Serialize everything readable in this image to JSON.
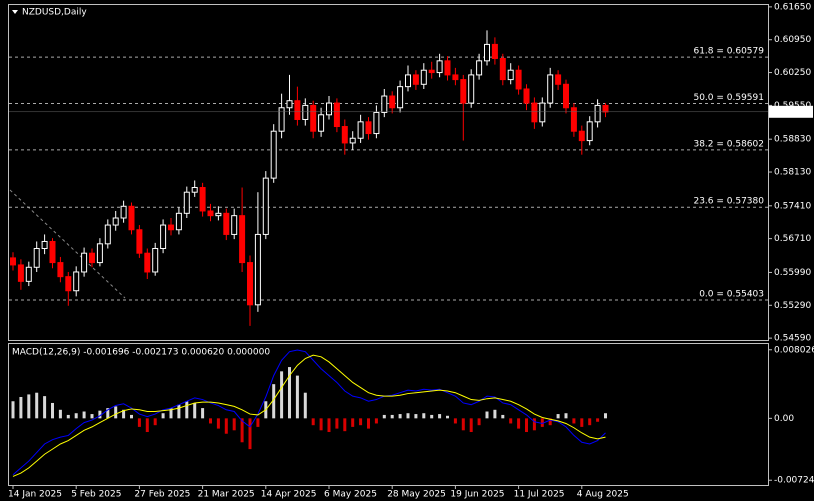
{
  "chart_data": {
    "type": "candlestick",
    "title": "NZDUSD,Daily",
    "up_color": "#ffffff",
    "down_color": "#ff0000",
    "ylim": [
      0.5455,
      0.6169
    ],
    "yticks": [
      {
        "value": 0.6165,
        "label": "0.61650"
      },
      {
        "value": 0.6095,
        "label": "0.60950"
      },
      {
        "value": 0.6025,
        "label": "0.60250"
      },
      {
        "value": 0.5955,
        "label": "0.59550"
      },
      {
        "value": 0.5883,
        "label": "0.58830"
      },
      {
        "value": 0.5813,
        "label": "0.58130"
      },
      {
        "value": 0.5741,
        "label": "0.57410"
      },
      {
        "value": 0.5671,
        "label": "0.56710"
      },
      {
        "value": 0.5599,
        "label": "0.55990"
      },
      {
        "value": 0.5529,
        "label": "0.55290"
      },
      {
        "value": 0.5459,
        "label": "0.54590"
      }
    ],
    "fib_levels": [
      {
        "value": 0.60579,
        "label": "61.8 = 0.60579"
      },
      {
        "value": 0.59591,
        "label": "50.0 = 0.59591"
      },
      {
        "value": 0.58602,
        "label": "38.2 = 0.58602"
      },
      {
        "value": 0.5738,
        "label": "23.6 = 0.57380"
      },
      {
        "value": 0.55403,
        "label": "0.0 = 0.55403"
      }
    ],
    "current_price": 0.59414,
    "x_labels": [
      "14 Jan 2025",
      "5 Feb 2025",
      "27 Feb 2025",
      "21 Mar 2025",
      "14 Apr 2025",
      "6 May 2025",
      "28 May 2025",
      "19 Jun 2025",
      "11 Jul 2025",
      "4 Aug 2025"
    ],
    "candles": [
      [
        0.563,
        0.5642,
        0.5603,
        0.5615
      ],
      [
        0.5615,
        0.5627,
        0.5562,
        0.558
      ],
      [
        0.558,
        0.5622,
        0.557,
        0.561
      ],
      [
        0.561,
        0.5665,
        0.56,
        0.565
      ],
      [
        0.565,
        0.568,
        0.5638,
        0.5665
      ],
      [
        0.5665,
        0.5672,
        0.5608,
        0.562
      ],
      [
        0.562,
        0.5632,
        0.5578,
        0.559
      ],
      [
        0.559,
        0.56,
        0.5528,
        0.556
      ],
      [
        0.556,
        0.5612,
        0.5548,
        0.56
      ],
      [
        0.56,
        0.5652,
        0.559,
        0.564
      ],
      [
        0.564,
        0.565,
        0.561,
        0.562
      ],
      [
        0.562,
        0.5672,
        0.5612,
        0.566
      ],
      [
        0.566,
        0.5712,
        0.565,
        0.57
      ],
      [
        0.57,
        0.573,
        0.5688,
        0.5715
      ],
      [
        0.5715,
        0.5752,
        0.5705,
        0.574
      ],
      [
        0.574,
        0.5748,
        0.568,
        0.569
      ],
      [
        0.569,
        0.57,
        0.563,
        0.564
      ],
      [
        0.564,
        0.565,
        0.5585,
        0.56
      ],
      [
        0.56,
        0.5662,
        0.5592,
        0.565
      ],
      [
        0.565,
        0.5712,
        0.564,
        0.57
      ],
      [
        0.57,
        0.5715,
        0.5678,
        0.569
      ],
      [
        0.569,
        0.5738,
        0.568,
        0.5725
      ],
      [
        0.5725,
        0.5782,
        0.5715,
        0.577
      ],
      [
        0.577,
        0.5795,
        0.576,
        0.578
      ],
      [
        0.578,
        0.579,
        0.5718,
        0.573
      ],
      [
        0.573,
        0.5745,
        0.5708,
        0.572
      ],
      [
        0.572,
        0.574,
        0.571,
        0.5725
      ],
      [
        0.5725,
        0.5735,
        0.5668,
        0.568
      ],
      [
        0.568,
        0.5735,
        0.567,
        0.572
      ],
      [
        0.572,
        0.578,
        0.56,
        0.562
      ],
      [
        0.562,
        0.5635,
        0.5485,
        0.553
      ],
      [
        0.553,
        0.577,
        0.5515,
        0.568
      ],
      [
        0.568,
        0.5815,
        0.567,
        0.58
      ],
      [
        0.58,
        0.5915,
        0.579,
        0.59
      ],
      [
        0.59,
        0.598,
        0.5885,
        0.595
      ],
      [
        0.595,
        0.602,
        0.5935,
        0.5965
      ],
      [
        0.5965,
        0.5995,
        0.5912,
        0.5925
      ],
      [
        0.5925,
        0.597,
        0.5912,
        0.5955
      ],
      [
        0.5955,
        0.5965,
        0.5885,
        0.59
      ],
      [
        0.59,
        0.595,
        0.5888,
        0.5935
      ],
      [
        0.5935,
        0.5975,
        0.5925,
        0.596
      ],
      [
        0.596,
        0.597,
        0.5898,
        0.591
      ],
      [
        0.591,
        0.5925,
        0.585,
        0.5875
      ],
      [
        0.5875,
        0.59,
        0.586,
        0.5885
      ],
      [
        0.5885,
        0.5935,
        0.5875,
        0.592
      ],
      [
        0.592,
        0.593,
        0.5882,
        0.5895
      ],
      [
        0.5895,
        0.5955,
        0.5885,
        0.594
      ],
      [
        0.594,
        0.599,
        0.593,
        0.5975
      ],
      [
        0.5975,
        0.5985,
        0.5938,
        0.595
      ],
      [
        0.595,
        0.6008,
        0.594,
        0.5995
      ],
      [
        0.5995,
        0.604,
        0.5985,
        0.602
      ],
      [
        0.602,
        0.603,
        0.5988,
        0.6
      ],
      [
        0.6,
        0.6045,
        0.599,
        0.603
      ],
      [
        0.603,
        0.6048,
        0.6012,
        0.6025
      ],
      [
        0.6025,
        0.6065,
        0.6015,
        0.605
      ],
      [
        0.605,
        0.606,
        0.6008,
        0.602
      ],
      [
        0.602,
        0.6035,
        0.5998,
        0.601
      ],
      [
        0.601,
        0.602,
        0.588,
        0.596
      ],
      [
        0.596,
        0.6032,
        0.595,
        0.602
      ],
      [
        0.602,
        0.6065,
        0.601,
        0.605
      ],
      [
        0.605,
        0.6115,
        0.604,
        0.6085
      ],
      [
        0.6085,
        0.61,
        0.6042,
        0.6055
      ],
      [
        0.6055,
        0.6065,
        0.5998,
        0.601
      ],
      [
        0.601,
        0.6045,
        0.6,
        0.603
      ],
      [
        0.603,
        0.604,
        0.5978,
        0.599
      ],
      [
        0.599,
        0.6,
        0.5945,
        0.596
      ],
      [
        0.596,
        0.5972,
        0.5905,
        0.592
      ],
      [
        0.592,
        0.5972,
        0.591,
        0.596
      ],
      [
        0.596,
        0.6035,
        0.595,
        0.602
      ],
      [
        0.602,
        0.603,
        0.5988,
        0.6
      ],
      [
        0.6,
        0.601,
        0.5938,
        0.595
      ],
      [
        0.595,
        0.596,
        0.5888,
        0.59
      ],
      [
        0.59,
        0.5912,
        0.585,
        0.588
      ],
      [
        0.588,
        0.5932,
        0.587,
        0.592
      ],
      [
        0.592,
        0.5968,
        0.5908,
        0.5955
      ],
      [
        0.5955,
        0.596,
        0.593,
        0.5941
      ]
    ],
    "macd": {
      "type": "macd",
      "title": "MACD(12,26,9) -0.001696 -0.002173 0.000620 0.000000",
      "ylim": [
        -0.0078,
        0.0087
      ],
      "yticks": [
        0.008026,
        {
          "value": 0,
          "label": "0.00"
        },
        -0.007243
      ],
      "up_color": "#ffffff",
      "down_color": "#ff0000",
      "histogram": [
        0.002,
        0.0025,
        0.0028,
        0.003,
        0.0026,
        0.0018,
        0.001,
        0.0004,
        0.0006,
        0.0008,
        0.0005,
        0.0009,
        0.0012,
        0.0014,
        0.001,
        0.0004,
        -0.001,
        -0.0016,
        -0.0008,
        0.0006,
        0.0012,
        0.0016,
        0.002,
        0.0018,
        0.0012,
        -0.0006,
        -0.0012,
        -0.0018,
        -0.0014,
        -0.0028,
        -0.0036,
        -0.001,
        0.002,
        0.004,
        0.0055,
        0.006,
        0.005,
        0.003,
        -0.0008,
        -0.0014,
        -0.0016,
        -0.0012,
        -0.0015,
        -0.001,
        -0.0008,
        -0.0012,
        -0.0006,
        0.0004,
        0.0004,
        0.0005,
        0.0006,
        0.0005,
        0.0006,
        0.0004,
        0.0005,
        0.0003,
        -0.0006,
        -0.0014,
        -0.0016,
        -0.0008,
        0.0008,
        0.001,
        0.0004,
        -0.0006,
        -0.0012,
        -0.0016,
        -0.0014,
        -0.001,
        -0.0008,
        0.0005,
        0.0006,
        -0.0006,
        -0.001,
        -0.0008,
        -0.0004,
        0.0006
      ],
      "series": [
        {
          "color": "#0000ff",
          "values": [
            -0.0066,
            -0.0058,
            -0.005,
            -0.004,
            -0.003,
            -0.0025,
            -0.0022,
            -0.002,
            -0.0012,
            -0.0005,
            -0.0002,
            0.0003,
            0.001,
            0.0015,
            0.0017,
            0.0012,
            0.0005,
            0.0002,
            0.0005,
            0.001,
            0.0012,
            0.0016,
            0.002,
            0.0024,
            0.0022,
            0.0018,
            0.0015,
            0.001,
            0.0008,
            -0.0003,
            -0.001,
            0.0005,
            0.0025,
            0.005,
            0.0068,
            0.0078,
            0.008,
            0.0078,
            0.0068,
            0.0058,
            0.005,
            0.0042,
            0.0032,
            0.0026,
            0.0024,
            0.002,
            0.0022,
            0.0026,
            0.0027,
            0.003,
            0.0033,
            0.0032,
            0.0034,
            0.0033,
            0.0034,
            0.003,
            0.0026,
            0.0018,
            0.0016,
            0.002,
            0.0026,
            0.0025,
            0.0018,
            0.0016,
            0.001,
            0.0004,
            -0.0004,
            -0.0006,
            -0.0002,
            -0.0004,
            -0.001,
            -0.002,
            -0.0028,
            -0.003,
            -0.0026,
            -0.0017
          ]
        },
        {
          "color": "#ffff00",
          "values": [
            -0.0068,
            -0.0064,
            -0.0058,
            -0.005,
            -0.0042,
            -0.0036,
            -0.003,
            -0.0026,
            -0.002,
            -0.0014,
            -0.001,
            -0.0005,
            0.0,
            0.0005,
            0.0009,
            0.0011,
            0.001,
            0.0008,
            0.0008,
            0.0009,
            0.001,
            0.0012,
            0.0015,
            0.0018,
            0.0019,
            0.0019,
            0.0018,
            0.0016,
            0.0014,
            0.001,
            0.0005,
            0.0004,
            0.001,
            0.0022,
            0.0036,
            0.005,
            0.0062,
            0.007,
            0.0074,
            0.0072,
            0.0066,
            0.0058,
            0.005,
            0.0042,
            0.0036,
            0.003,
            0.0027,
            0.0026,
            0.0026,
            0.0027,
            0.0029,
            0.003,
            0.0031,
            0.0032,
            0.0033,
            0.0032,
            0.003,
            0.0026,
            0.0022,
            0.0021,
            0.0023,
            0.0024,
            0.0022,
            0.002,
            0.0016,
            0.0011,
            0.0005,
            0.0001,
            -0.0001,
            -0.0003,
            -0.0006,
            -0.0011,
            -0.0017,
            -0.0022,
            -0.0024,
            -0.0022
          ]
        }
      ]
    }
  }
}
